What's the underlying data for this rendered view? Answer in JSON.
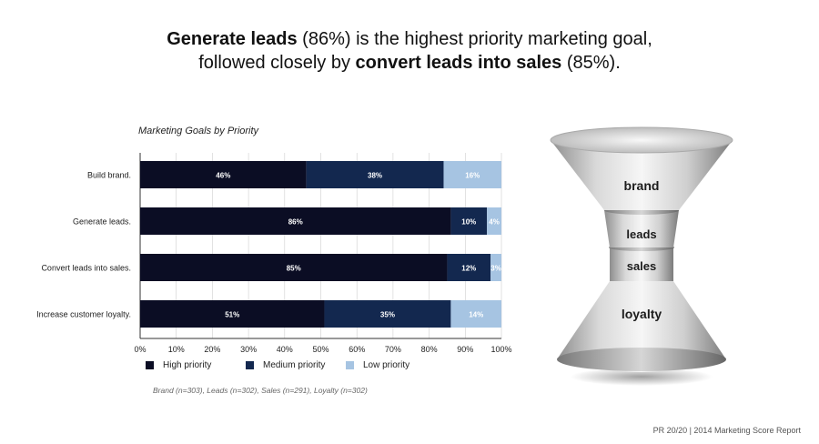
{
  "headline": {
    "line1_bold": "Generate leads",
    "line1_rest": " (86%) is the highest priority marketing goal,",
    "line2_start": "followed closely by ",
    "line2_bold": "convert leads into sales",
    "line2_end": " (85%)."
  },
  "chart_data": {
    "type": "bar",
    "orientation": "horizontal",
    "stacked": true,
    "title": "Marketing Goals by Priority",
    "categories": [
      "Build brand.",
      "Generate leads.",
      "Convert leads into sales.",
      "Increase customer loyalty."
    ],
    "series": [
      {
        "name": "High priority",
        "color": "#0b0d24",
        "values": [
          46,
          86,
          85,
          51
        ],
        "labels": [
          "46%",
          "86%",
          "85%",
          "51%"
        ]
      },
      {
        "name": "Medium priority",
        "color": "#13284f",
        "values": [
          38,
          10,
          12,
          35
        ],
        "labels": [
          "38%",
          "10%",
          "12%",
          "35%"
        ]
      },
      {
        "name": "Low priority",
        "color": "#a6c4e2",
        "values": [
          16,
          4,
          3,
          14
        ],
        "labels": [
          "16%",
          "4%",
          "3%",
          "14%"
        ]
      }
    ],
    "xlim": [
      0,
      100
    ],
    "xticks": [
      "0%",
      "10%",
      "20%",
      "30%",
      "40%",
      "50%",
      "60%",
      "70%",
      "80%",
      "90%",
      "100%"
    ],
    "grid": true,
    "legend_position": "bottom"
  },
  "sample_note": "Brand (n=303), Leads (n=302), Sales (n=291), Loyalty (n=302)",
  "funnel_labels": [
    "brand",
    "leads",
    "sales",
    "loyalty"
  ],
  "footer": "PR 20/20 | 2014 Marketing Score Report"
}
